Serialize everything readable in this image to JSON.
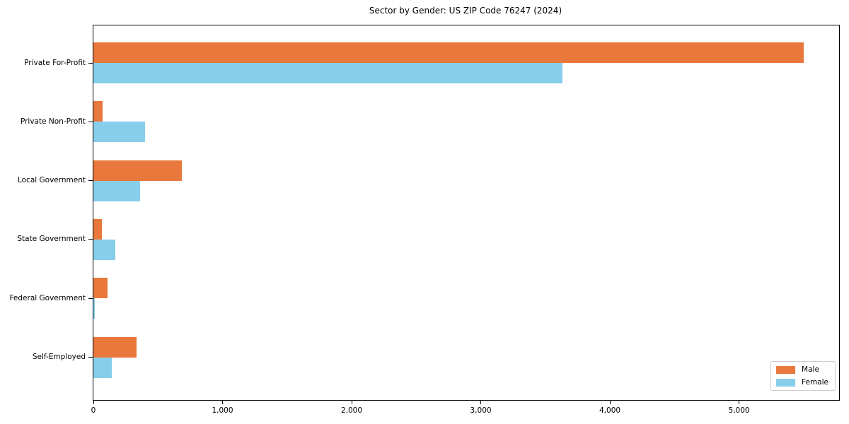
{
  "chart_data": {
    "type": "bar",
    "orientation": "horizontal",
    "title": "Sector by Gender: US ZIP Code 76247 (2024)",
    "categories": [
      "Private For-Profit",
      "Private Non-Profit",
      "Local Government",
      "State Government",
      "Federal Government",
      "Self-Employed"
    ],
    "series": [
      {
        "name": "Male",
        "color": "#E8783C",
        "values": [
          5500,
          70,
          685,
          65,
          110,
          335
        ]
      },
      {
        "name": "Female",
        "color": "#87CEEB",
        "values": [
          3630,
          400,
          360,
          170,
          10,
          140
        ]
      }
    ],
    "xlabel": "",
    "ylabel": "",
    "xlim": [
      0,
      5775
    ],
    "xticks": [
      {
        "value": 0,
        "label": "0"
      },
      {
        "value": 1000,
        "label": "1,000"
      },
      {
        "value": 2000,
        "label": "2,000"
      },
      {
        "value": 3000,
        "label": "3,000"
      },
      {
        "value": 4000,
        "label": "4,000"
      },
      {
        "value": 5000,
        "label": "5,000"
      }
    ],
    "grid": false,
    "legend_position": "lower right",
    "colors": {
      "male": "#E8783C",
      "female": "#87CEEB",
      "spine": "#000000",
      "background": "#ffffff",
      "legend_border": "#cccccc"
    }
  }
}
